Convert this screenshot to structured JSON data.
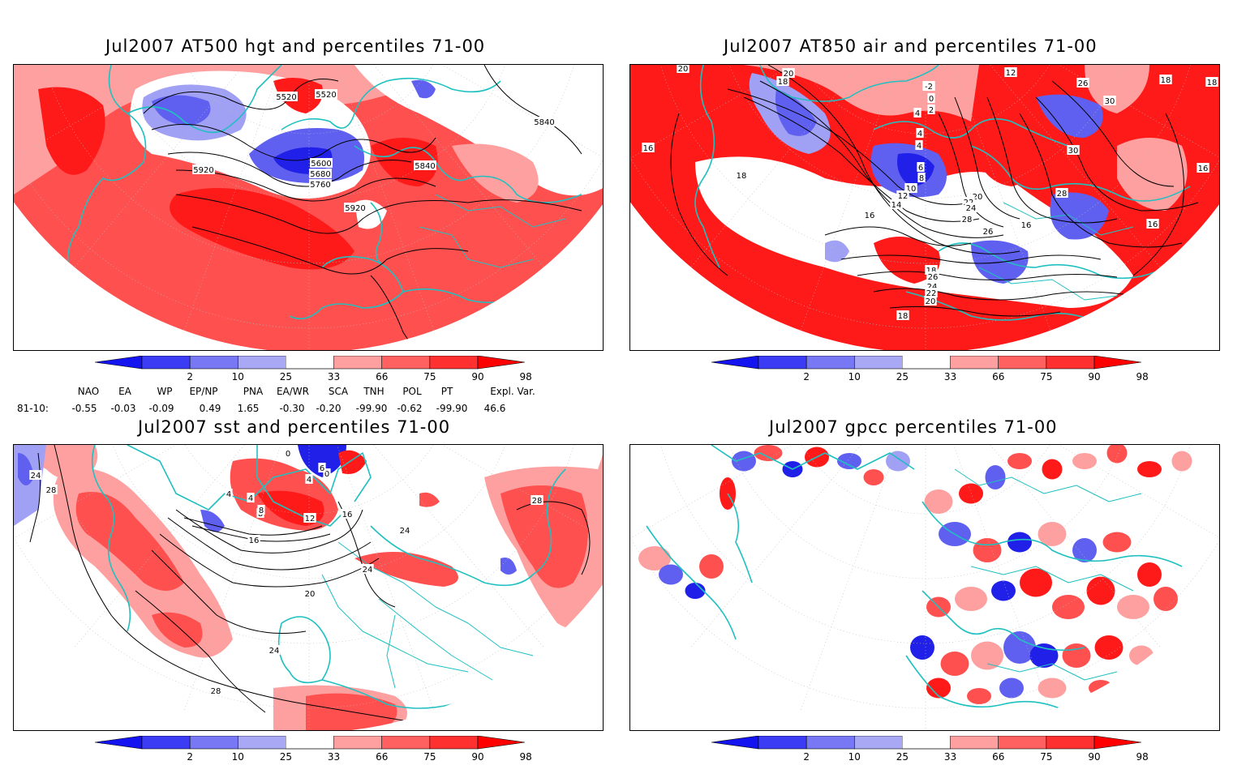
{
  "panels": [
    {
      "title": "Jul2007 AT500 hgt and percentiles 71-00",
      "contour_labels": [
        "5520",
        "5520",
        "5840",
        "5600",
        "5680",
        "5760",
        "5840",
        "5920",
        "5920"
      ]
    },
    {
      "title": "Jul2007 AT850 air and percentiles 71-00",
      "contour_labels": [
        "20",
        "20",
        "18",
        "-2",
        "0",
        "2",
        "4",
        "12",
        "26",
        "30",
        "18",
        "18",
        "16",
        "18",
        "4",
        "4",
        "6",
        "8",
        "10",
        "12",
        "14",
        "16",
        "20",
        "22",
        "24",
        "28",
        "30",
        "28",
        "26",
        "16",
        "18",
        "26",
        "24",
        "22",
        "20",
        "18",
        "16",
        "16"
      ]
    },
    {
      "title": "Jul2007 sst and percentiles 71-00",
      "contour_labels": [
        "24",
        "28",
        "0",
        "4",
        "4",
        "8",
        "8",
        "12",
        "0",
        "16",
        "16",
        "24",
        "24",
        "20",
        "24",
        "28",
        "28",
        "4",
        "6"
      ]
    },
    {
      "title": "Jul2007 gpcc percentiles 71-00",
      "contour_labels": []
    }
  ],
  "colorbar": {
    "ticks": [
      "2",
      "10",
      "25",
      "33",
      "66",
      "75",
      "90",
      "98"
    ],
    "colors": [
      "#1414f0",
      "#3c3cf5",
      "#7878f5",
      "#a8a8f5",
      "#ffffff",
      "#ffa0a0",
      "#ff6060",
      "#ff3030",
      "#ff0000"
    ]
  },
  "indices": {
    "headers": [
      "NAO",
      "EA",
      "WP",
      "EP/NP",
      "PNA",
      "EA/WR",
      "SCA",
      "TNH",
      "POL",
      "PT",
      "Expl. Var."
    ],
    "period": "81-10:",
    "values": [
      "-0.55",
      "-0.03",
      "-0.09",
      "0.49",
      "1.65",
      "-0.30",
      "-0.20",
      "-99.90",
      "-0.62",
      "-99.90",
      "46.6"
    ]
  },
  "colors": {
    "coast": "#20c0c0",
    "contour": "#000000",
    "red_strong": "#ff1a1a",
    "red_mid": "#ff5050",
    "red_light": "#ffa0a0",
    "blue_strong": "#2020e8",
    "blue_mid": "#6060f0",
    "blue_light": "#a0a0f5"
  }
}
